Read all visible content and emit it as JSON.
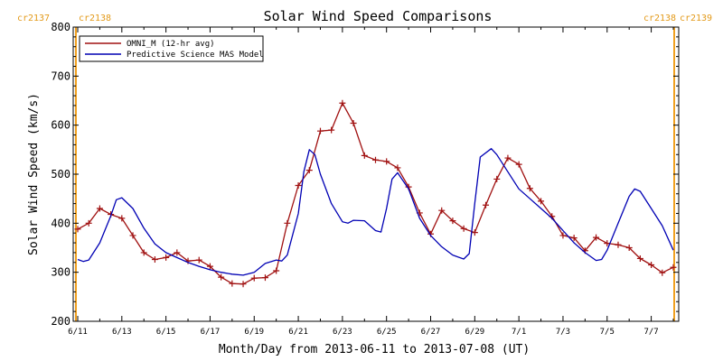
{
  "chart_data": {
    "type": "line",
    "title": "Solar Wind Speed Comparisons",
    "xlabel": "Month/Day from 2013-06-11 to 2013-07-08 (UT)",
    "ylabel": "Solar Wind Speed (km/s)",
    "ylim": [
      200,
      800
    ],
    "xlim": [
      "2013-06-11",
      "2013-07-08"
    ],
    "yticks": [
      "200",
      "300",
      "400",
      "500",
      "600",
      "700",
      "800"
    ],
    "xtick_labels": [
      "6/11",
      "6/13",
      "6/15",
      "6/17",
      "6/19",
      "6/21",
      "6/23",
      "6/25",
      "6/27",
      "6/29",
      "7/1",
      "7/3",
      "7/5",
      "7/7"
    ],
    "carrington_labels": {
      "left": [
        "cr2137",
        "cr2138"
      ],
      "right": [
        "cr2138",
        "cr2139"
      ]
    },
    "legend_position": "top-left",
    "series": [
      {
        "name": "OMNI_M (12-hr avg)",
        "color": "#a01010",
        "marker": "plus",
        "points": [
          [
            "2013-06-11 00:00",
            388
          ],
          [
            "2013-06-11 12:00",
            400
          ],
          [
            "2013-06-12 00:00",
            430
          ],
          [
            "2013-06-12 12:00",
            418
          ],
          [
            "2013-06-13 00:00",
            410
          ],
          [
            "2013-06-13 12:00",
            375
          ],
          [
            "2013-06-14 00:00",
            340
          ],
          [
            "2013-06-14 12:00",
            326
          ],
          [
            "2013-06-15 00:00",
            330
          ],
          [
            "2013-06-15 12:00",
            340
          ],
          [
            "2013-06-16 00:00",
            323
          ],
          [
            "2013-06-16 12:00",
            325
          ],
          [
            "2013-06-17 00:00",
            312
          ],
          [
            "2013-06-17 12:00",
            290
          ],
          [
            "2013-06-18 00:00",
            277
          ],
          [
            "2013-06-18 12:00",
            276
          ],
          [
            "2013-06-19 00:00",
            288
          ],
          [
            "2013-06-19 12:00",
            289
          ],
          [
            "2013-06-20 00:00",
            303
          ],
          [
            "2013-06-20 12:00",
            400
          ],
          [
            "2013-06-21 00:00",
            477
          ],
          [
            "2013-06-21 12:00",
            508
          ],
          [
            "2013-06-22 00:00",
            588
          ],
          [
            "2013-06-22 12:00",
            590
          ],
          [
            "2013-06-23 00:00",
            645
          ],
          [
            "2013-06-23 12:00",
            604
          ],
          [
            "2013-06-24 00:00",
            538
          ],
          [
            "2013-06-24 12:00",
            529
          ],
          [
            "2013-06-25 00:00",
            526
          ],
          [
            "2013-06-25 12:00",
            513
          ],
          [
            "2013-06-26 00:00",
            474
          ],
          [
            "2013-06-26 12:00",
            421
          ],
          [
            "2013-06-27 00:00",
            378
          ],
          [
            "2013-06-27 12:00",
            426
          ],
          [
            "2013-06-28 00:00",
            405
          ],
          [
            "2013-06-28 12:00",
            389
          ],
          [
            "2013-06-29 00:00",
            381
          ],
          [
            "2013-06-29 12:00",
            437
          ],
          [
            "2013-06-30 00:00",
            490
          ],
          [
            "2013-06-30 12:00",
            533
          ],
          [
            "2013-07-01 00:00",
            520
          ],
          [
            "2013-07-01 12:00",
            471
          ],
          [
            "2013-07-02 00:00",
            445
          ],
          [
            "2013-07-02 12:00",
            414
          ],
          [
            "2013-07-03 00:00",
            375
          ],
          [
            "2013-07-03 12:00",
            370
          ],
          [
            "2013-07-04 00:00",
            344
          ],
          [
            "2013-07-04 12:00",
            371
          ],
          [
            "2013-07-05 00:00",
            359
          ],
          [
            "2013-07-05 12:00",
            356
          ],
          [
            "2013-07-06 00:00",
            350
          ],
          [
            "2013-07-06 12:00",
            328
          ],
          [
            "2013-07-07 00:00",
            315
          ],
          [
            "2013-07-07 12:00",
            299
          ],
          [
            "2013-07-08 00:00",
            310
          ]
        ]
      },
      {
        "name": "Predictive Science MAS Model",
        "color": "#0000b4",
        "marker": "none",
        "points": [
          [
            "2013-06-11 00:00",
            326
          ],
          [
            "2013-06-11 06:00",
            322
          ],
          [
            "2013-06-11 12:00",
            325
          ],
          [
            "2013-06-12 00:00",
            360
          ],
          [
            "2013-06-12 12:00",
            415
          ],
          [
            "2013-06-12 18:00",
            448
          ],
          [
            "2013-06-13 00:00",
            452
          ],
          [
            "2013-06-13 12:00",
            430
          ],
          [
            "2013-06-14 00:00",
            390
          ],
          [
            "2013-06-14 12:00",
            358
          ],
          [
            "2013-06-15 00:00",
            340
          ],
          [
            "2013-06-15 12:00",
            330
          ],
          [
            "2013-06-16 00:00",
            320
          ],
          [
            "2013-06-16 12:00",
            312
          ],
          [
            "2013-06-17 00:00",
            305
          ],
          [
            "2013-06-17 12:00",
            300
          ],
          [
            "2013-06-18 00:00",
            296
          ],
          [
            "2013-06-18 12:00",
            294
          ],
          [
            "2013-06-19 00:00",
            300
          ],
          [
            "2013-06-19 12:00",
            318
          ],
          [
            "2013-06-20 00:00",
            325
          ],
          [
            "2013-06-20 06:00",
            323
          ],
          [
            "2013-06-20 12:00",
            335
          ],
          [
            "2013-06-21 00:00",
            420
          ],
          [
            "2013-06-21 06:00",
            505
          ],
          [
            "2013-06-21 12:00",
            550
          ],
          [
            "2013-06-21 18:00",
            540
          ],
          [
            "2013-06-22 00:00",
            500
          ],
          [
            "2013-06-22 12:00",
            440
          ],
          [
            "2013-06-23 00:00",
            403
          ],
          [
            "2013-06-23 06:00",
            400
          ],
          [
            "2013-06-23 12:00",
            406
          ],
          [
            "2013-06-24 00:00",
            405
          ],
          [
            "2013-06-24 12:00",
            385
          ],
          [
            "2013-06-24 18:00",
            382
          ],
          [
            "2013-06-25 00:00",
            430
          ],
          [
            "2013-06-25 06:00",
            490
          ],
          [
            "2013-06-25 12:00",
            503
          ],
          [
            "2013-06-26 00:00",
            470
          ],
          [
            "2013-06-26 12:00",
            410
          ],
          [
            "2013-06-27 00:00",
            375
          ],
          [
            "2013-06-27 12:00",
            352
          ],
          [
            "2013-06-28 00:00",
            335
          ],
          [
            "2013-06-28 12:00",
            327
          ],
          [
            "2013-06-28 18:00",
            338
          ],
          [
            "2013-06-29 00:00",
            440
          ],
          [
            "2013-06-29 06:00",
            535
          ],
          [
            "2013-06-29 18:00",
            552
          ],
          [
            "2013-06-30 00:00",
            540
          ],
          [
            "2013-06-30 12:00",
            505
          ],
          [
            "2013-07-01 00:00",
            470
          ],
          [
            "2013-07-01 12:00",
            450
          ],
          [
            "2013-07-02 00:00",
            430
          ],
          [
            "2013-07-02 12:00",
            410
          ],
          [
            "2013-07-03 00:00",
            385
          ],
          [
            "2013-07-03 12:00",
            360
          ],
          [
            "2013-07-04 00:00",
            340
          ],
          [
            "2013-07-04 12:00",
            324
          ],
          [
            "2013-07-04 18:00",
            326
          ],
          [
            "2013-07-05 00:00",
            345
          ],
          [
            "2013-07-05 12:00",
            400
          ],
          [
            "2013-07-06 00:00",
            455
          ],
          [
            "2013-07-06 06:00",
            470
          ],
          [
            "2013-07-06 12:00",
            465
          ],
          [
            "2013-07-07 00:00",
            430
          ],
          [
            "2013-07-07 12:00",
            395
          ],
          [
            "2013-07-08 00:00",
            345
          ]
        ]
      }
    ]
  }
}
